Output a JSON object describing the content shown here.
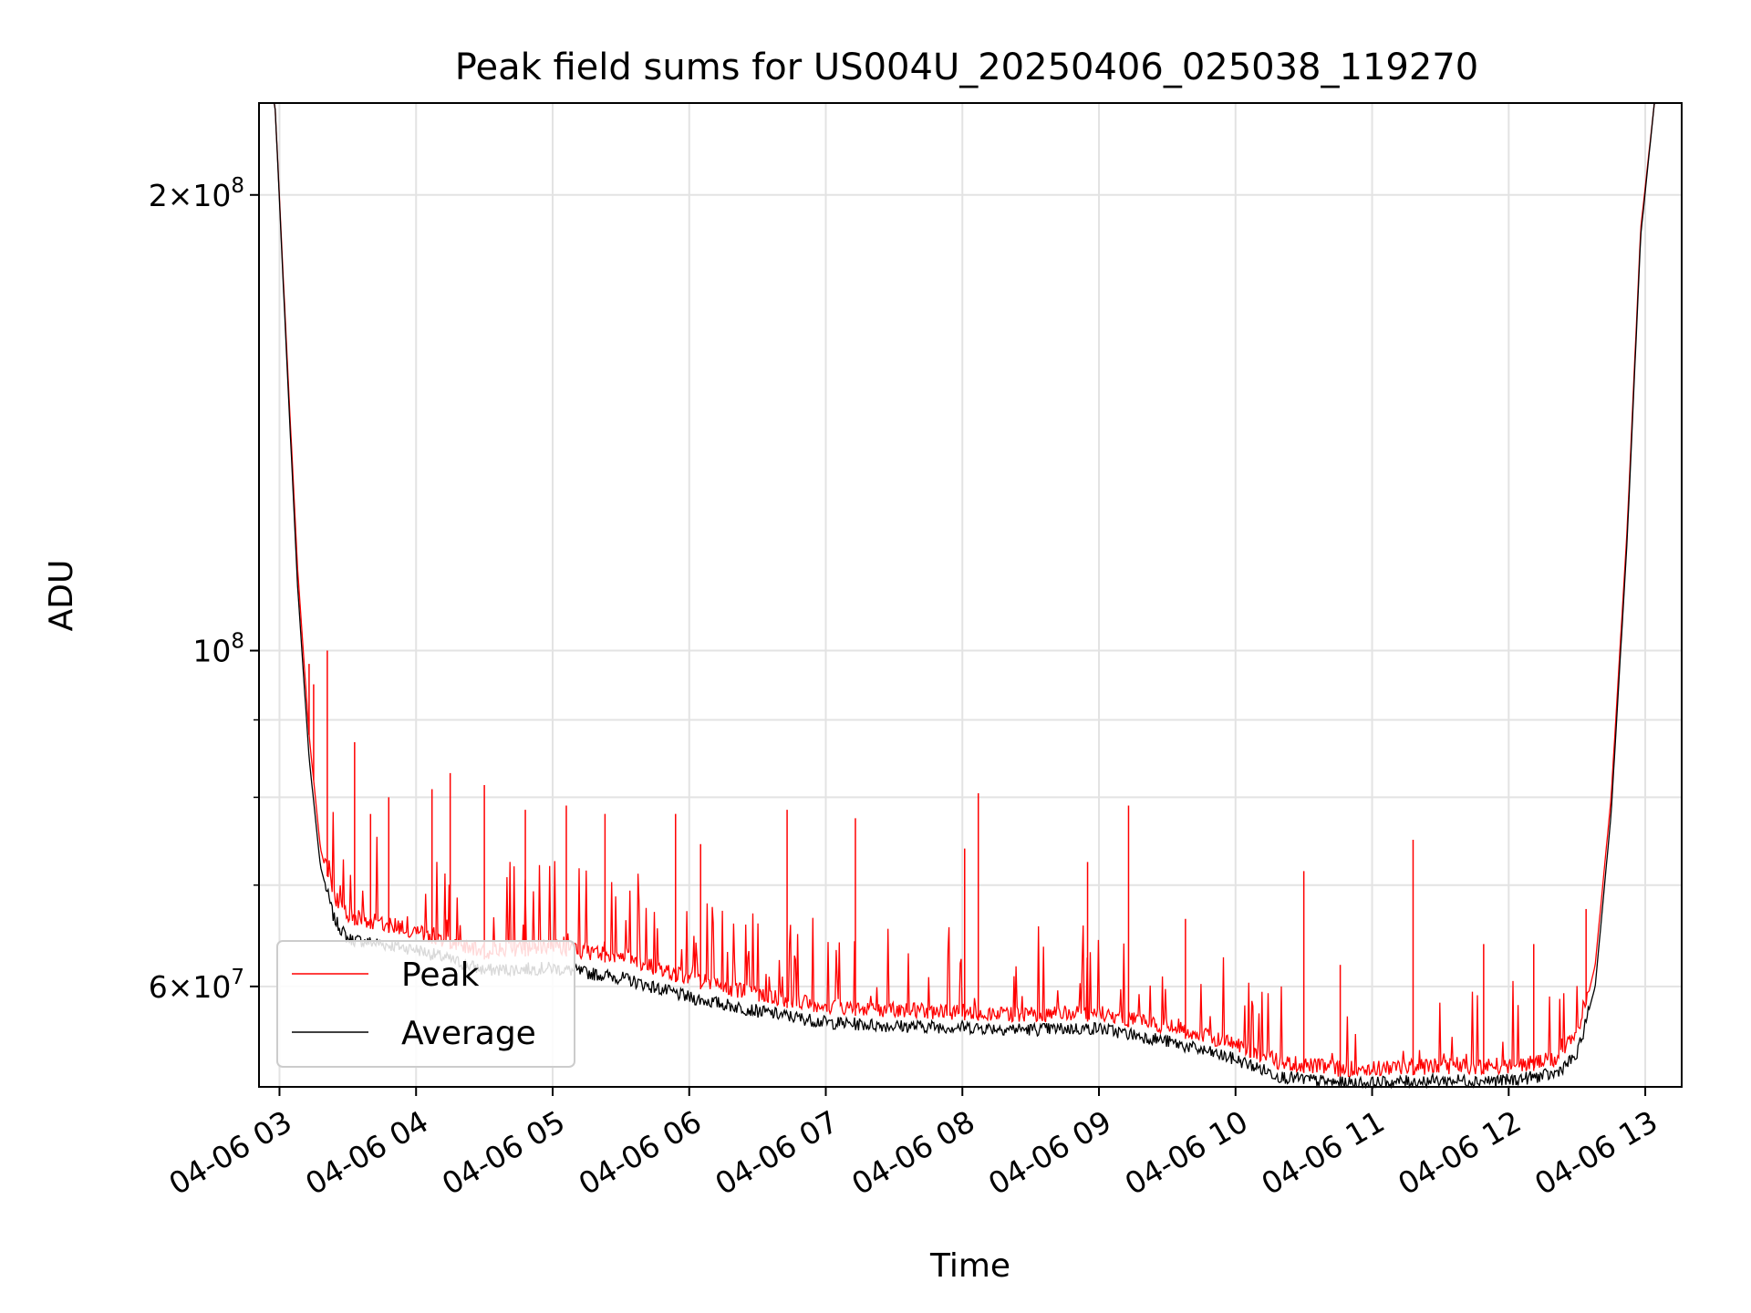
{
  "chart_data": {
    "type": "line",
    "title": "Peak field sums for US004U_20250406_025038_119270",
    "xlabel": "Time",
    "ylabel": "ADU",
    "yscale": "log",
    "xlim": [
      "2025-04-06 02:51",
      "2025-04-06 13:16"
    ],
    "ylim": [
      51500000,
      230000000
    ],
    "grid": true,
    "legend_position": "lower-left",
    "x_ticks": [
      {
        "value": "2025-04-06 03:00",
        "label": "04-06 03"
      },
      {
        "value": "2025-04-06 04:00",
        "label": "04-06 04"
      },
      {
        "value": "2025-04-06 05:00",
        "label": "04-06 05"
      },
      {
        "value": "2025-04-06 06:00",
        "label": "04-06 06"
      },
      {
        "value": "2025-04-06 07:00",
        "label": "04-06 07"
      },
      {
        "value": "2025-04-06 08:00",
        "label": "04-06 08"
      },
      {
        "value": "2025-04-06 09:00",
        "label": "04-06 09"
      },
      {
        "value": "2025-04-06 10:00",
        "label": "04-06 10"
      },
      {
        "value": "2025-04-06 11:00",
        "label": "04-06 11"
      },
      {
        "value": "2025-04-06 12:00",
        "label": "04-06 12"
      },
      {
        "value": "2025-04-06 13:00",
        "label": "04-06 13"
      }
    ],
    "y_major_ticks": [
      {
        "value": 60000000,
        "mantissa": "6",
        "exponent": "7"
      },
      {
        "value": 100000000,
        "mantissa": "",
        "exponent": "8"
      },
      {
        "value": 200000000,
        "mantissa": "2",
        "exponent": "8"
      }
    ],
    "y_minor_ticks": [
      50000000,
      70000000,
      80000000,
      90000000,
      300000000
    ],
    "series": [
      {
        "name": "Peak",
        "color": "#ff0000",
        "baseline": [
          [
            "2025-04-06 02:51",
            230000000
          ],
          [
            "2025-04-06 02:58",
            230000000
          ],
          [
            "2025-04-06 03:03",
            160000000
          ],
          [
            "2025-04-06 03:08",
            113000000
          ],
          [
            "2025-04-06 03:13",
            88000000
          ],
          [
            "2025-04-06 03:18",
            74000000
          ],
          [
            "2025-04-06 03:24",
            68000000
          ],
          [
            "2025-04-06 03:30",
            66000000
          ],
          [
            "2025-04-06 04:00",
            64500000
          ],
          [
            "2025-04-06 04:30",
            62500000
          ],
          [
            "2025-04-06 05:00",
            63000000
          ],
          [
            "2025-04-06 05:30",
            62000000
          ],
          [
            "2025-04-06 06:00",
            60000000
          ],
          [
            "2025-04-06 06:30",
            58500000
          ],
          [
            "2025-04-06 07:00",
            57500000
          ],
          [
            "2025-04-06 07:30",
            57200000
          ],
          [
            "2025-04-06 08:00",
            57000000
          ],
          [
            "2025-04-06 08:30",
            56800000
          ],
          [
            "2025-04-06 09:00",
            56900000
          ],
          [
            "2025-04-06 09:30",
            55800000
          ],
          [
            "2025-04-06 10:00",
            54300000
          ],
          [
            "2025-04-06 10:20",
            52800000
          ],
          [
            "2025-04-06 10:45",
            52300000
          ],
          [
            "2025-04-06 11:00",
            52300000
          ],
          [
            "2025-04-06 11:30",
            52500000
          ],
          [
            "2025-04-06 12:00",
            52500000
          ],
          [
            "2025-04-06 12:20",
            53000000
          ],
          [
            "2025-04-06 12:30",
            55000000
          ],
          [
            "2025-04-06 12:38",
            62000000
          ],
          [
            "2025-04-06 12:45",
            80000000
          ],
          [
            "2025-04-06 12:52",
            120000000
          ],
          [
            "2025-04-06 12:58",
            190000000
          ],
          [
            "2025-04-06 13:04",
            230000000
          ],
          [
            "2025-04-06 13:16",
            230000000
          ]
        ],
        "spikes": [
          [
            "2025-04-06 03:13",
            98000000
          ],
          [
            "2025-04-06 03:15",
            95000000
          ],
          [
            "2025-04-06 03:21",
            100000000
          ],
          [
            "2025-04-06 03:33",
            87000000
          ],
          [
            "2025-04-06 03:40",
            78000000
          ],
          [
            "2025-04-06 03:48",
            80000000
          ],
          [
            "2025-04-06 04:07",
            81000000
          ],
          [
            "2025-04-06 04:15",
            83000000
          ],
          [
            "2025-04-06 04:30",
            81500000
          ],
          [
            "2025-04-06 04:48",
            78500000
          ],
          [
            "2025-04-06 05:06",
            79000000
          ],
          [
            "2025-04-06 05:23",
            78000000
          ],
          [
            "2025-04-06 05:54",
            78000000
          ],
          [
            "2025-04-06 06:05",
            74500000
          ],
          [
            "2025-04-06 06:43",
            78500000
          ],
          [
            "2025-04-06 07:13",
            77500000
          ],
          [
            "2025-04-06 08:01",
            74000000
          ],
          [
            "2025-04-06 08:07",
            80500000
          ],
          [
            "2025-04-06 08:55",
            72500000
          ],
          [
            "2025-04-06 09:13",
            79000000
          ],
          [
            "2025-04-06 09:38",
            66500000
          ],
          [
            "2025-04-06 10:30",
            71500000
          ],
          [
            "2025-04-06 10:46",
            62000000
          ],
          [
            "2025-04-06 11:18",
            75000000
          ],
          [
            "2025-04-06 11:49",
            64000000
          ],
          [
            "2025-04-06 12:11",
            64000000
          ],
          [
            "2025-04-06 12:34",
            67500000
          ]
        ]
      },
      {
        "name": "Average",
        "color": "#000000",
        "values": [
          [
            "2025-04-06 02:51",
            230000000
          ],
          [
            "2025-04-06 02:58",
            230000000
          ],
          [
            "2025-04-06 03:03",
            158000000
          ],
          [
            "2025-04-06 03:08",
            110000000
          ],
          [
            "2025-04-06 03:13",
            85000000
          ],
          [
            "2025-04-06 03:18",
            72000000
          ],
          [
            "2025-04-06 03:24",
            66500000
          ],
          [
            "2025-04-06 03:30",
            64500000
          ],
          [
            "2025-04-06 04:00",
            63500000
          ],
          [
            "2025-04-06 04:30",
            61500000
          ],
          [
            "2025-04-06 05:00",
            61700000
          ],
          [
            "2025-04-06 05:30",
            60800000
          ],
          [
            "2025-04-06 06:00",
            59000000
          ],
          [
            "2025-04-06 06:30",
            57800000
          ],
          [
            "2025-04-06 07:00",
            56800000
          ],
          [
            "2025-04-06 07:30",
            56500000
          ],
          [
            "2025-04-06 08:00",
            56400000
          ],
          [
            "2025-04-06 08:30",
            56200000
          ],
          [
            "2025-04-06 09:00",
            56300000
          ],
          [
            "2025-04-06 09:30",
            55200000
          ],
          [
            "2025-04-06 10:00",
            53700000
          ],
          [
            "2025-04-06 10:20",
            52300000
          ],
          [
            "2025-04-06 10:45",
            51800000
          ],
          [
            "2025-04-06 11:00",
            51800000
          ],
          [
            "2025-04-06 11:30",
            52000000
          ],
          [
            "2025-04-06 12:00",
            52000000
          ],
          [
            "2025-04-06 12:20",
            52500000
          ],
          [
            "2025-04-06 12:30",
            54000000
          ],
          [
            "2025-04-06 12:38",
            60000000
          ],
          [
            "2025-04-06 12:45",
            78000000
          ],
          [
            "2025-04-06 12:52",
            118000000
          ],
          [
            "2025-04-06 12:58",
            188000000
          ],
          [
            "2025-04-06 13:04",
            230000000
          ],
          [
            "2025-04-06 13:16",
            230000000
          ]
        ]
      }
    ]
  }
}
